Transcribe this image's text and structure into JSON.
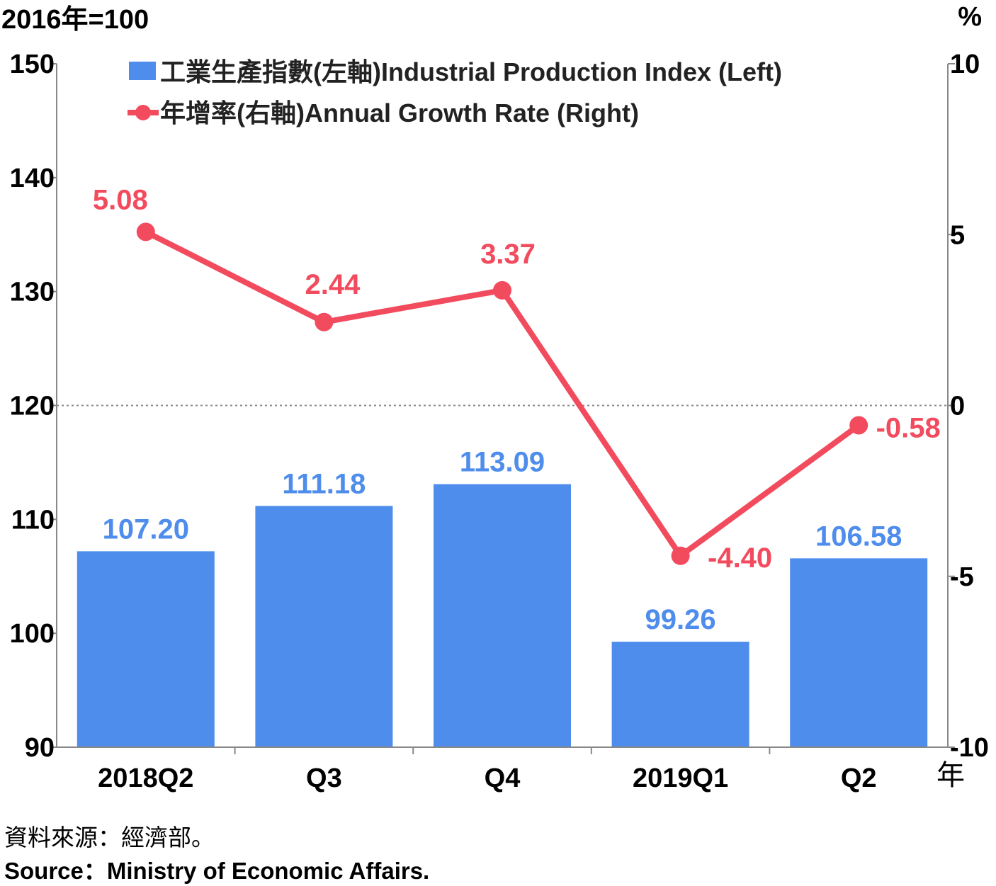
{
  "chart_data": {
    "type": "bar",
    "left_unit": "2016年=100",
    "right_unit": "%",
    "x_unit": "年",
    "categories": [
      "2018Q2",
      "Q3",
      "Q4",
      "2019Q1",
      "Q2"
    ],
    "left_axis": {
      "min": 90,
      "max": 150,
      "ticks": [
        90,
        100,
        110,
        120,
        130,
        140,
        150
      ]
    },
    "right_axis": {
      "min": -10,
      "max": 10,
      "ticks": [
        -10,
        -5,
        0,
        5,
        10
      ]
    },
    "series": [
      {
        "name": "工業生產指數(左軸)Industrial Production Index (Left)",
        "type": "bar",
        "axis": "left",
        "values": [
          107.2,
          111.18,
          113.09,
          99.26,
          106.58
        ],
        "labels": [
          "107.20",
          "111.18",
          "113.09",
          "99.26",
          "106.58"
        ]
      },
      {
        "name": "年增率(右軸)Annual Growth Rate (Right)",
        "type": "line",
        "axis": "right",
        "values": [
          5.08,
          2.44,
          3.37,
          -4.4,
          -0.58
        ],
        "labels": [
          "5.08",
          "2.44",
          "3.37",
          "-4.40",
          "-0.58"
        ]
      }
    ],
    "reference_line": {
      "axis": "right",
      "value": 0,
      "style": "dotted"
    },
    "legend_position": "top-left",
    "colors": {
      "bar": "#4f8ded",
      "line": "#f24b5e",
      "bar_label": "#4f8ded",
      "line_label": "#f24b5e"
    }
  },
  "source": {
    "zh": "資料來源：經濟部。",
    "en": "Source：Ministry of Economic Affairs."
  }
}
